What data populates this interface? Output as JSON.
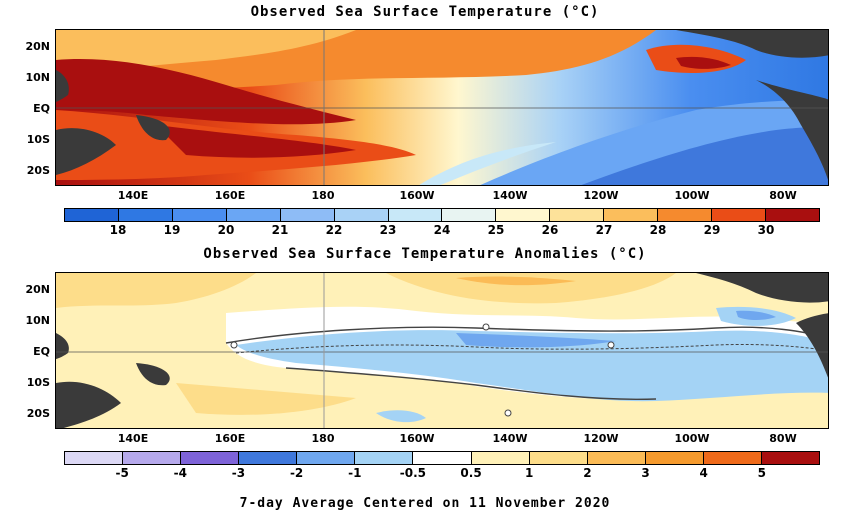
{
  "top_panel": {
    "title": "Observed Sea Surface Temperature (°C)",
    "lat_labels": [
      "20N",
      "10N",
      "EQ",
      "10S",
      "20S"
    ],
    "lon_labels": [
      "140E",
      "160E",
      "180",
      "160W",
      "140W",
      "120W",
      "100W",
      "80W"
    ],
    "colorbar_labels": [
      "18",
      "19",
      "20",
      "21",
      "22",
      "23",
      "24",
      "25",
      "26",
      "27",
      "28",
      "29",
      "30"
    ],
    "colorbar_colors": [
      "#1f64d6",
      "#2f78e3",
      "#4a8ef0",
      "#6aa6f4",
      "#8ebcf6",
      "#a9d2f6",
      "#c8e8f8",
      "#e8f4f2",
      "#fff7cf",
      "#fde29a",
      "#fbbe5c",
      "#f58a2e",
      "#ea4d17",
      "#a90f0f"
    ]
  },
  "bottom_panel": {
    "title": "Observed Sea Surface Temperature Anomalies (°C)",
    "lat_labels": [
      "20N",
      "10N",
      "EQ",
      "10S",
      "20S"
    ],
    "lon_labels": [
      "140E",
      "160E",
      "180",
      "160W",
      "140W",
      "120W",
      "100W",
      "80W"
    ],
    "colorbar_labels": [
      "-5",
      "-4",
      "-3",
      "-2",
      "-1",
      "-0.5",
      "0.5",
      "1",
      "2",
      "3",
      "4",
      "5"
    ],
    "colorbar_colors": [
      "#dcd8f5",
      "#b6a9ec",
      "#7e63d8",
      "#3f78dc",
      "#6fa7ef",
      "#a4d3f5",
      "#ffffff",
      "#fff1b8",
      "#fddd8a",
      "#fbbb56",
      "#f59a2d",
      "#ef6a1a",
      "#a90f0f"
    ]
  },
  "footer": "7-day Average Centered on 11 November 2020"
}
